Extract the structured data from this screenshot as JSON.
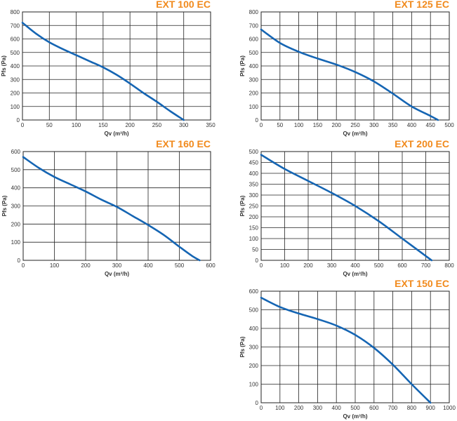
{
  "colors": {
    "title": "#f18a1c",
    "curve": "#1565b3",
    "grid": "#222222"
  },
  "chart_data": [
    {
      "type": "line",
      "title": "EXT 100 EC",
      "xlabel": "Qv (m³/h)",
      "ylabel": "Pfs (Pa)",
      "xlim": [
        0,
        350
      ],
      "ylim": [
        0,
        800
      ],
      "xticks": [
        "0",
        "50",
        "100",
        "150",
        "200",
        "250",
        "300",
        "350"
      ],
      "yticks": [
        "0",
        "100",
        "200",
        "300",
        "400",
        "500",
        "600",
        "700",
        "800"
      ],
      "grid": true,
      "series": [
        {
          "x": [
            0,
            25,
            50,
            75,
            100,
            125,
            150,
            175,
            200,
            225,
            250,
            275,
            300
          ],
          "y": [
            720,
            640,
            575,
            525,
            480,
            435,
            390,
            335,
            270,
            200,
            135,
            65,
            0
          ]
        }
      ]
    },
    {
      "type": "line",
      "title": "EXT 125 EC",
      "xlabel": "Qv (m³/h)",
      "ylabel": "Pfs (Pa)",
      "xlim": [
        0,
        500
      ],
      "ylim": [
        0,
        800
      ],
      "xticks": [
        "0",
        "50",
        "100",
        "150",
        "200",
        "250",
        "300",
        "350",
        "400",
        "450",
        "500"
      ],
      "yticks": [
        "0",
        "100",
        "200",
        "300",
        "400",
        "500",
        "600",
        "700",
        "800"
      ],
      "grid": true,
      "series": [
        {
          "x": [
            0,
            50,
            100,
            150,
            200,
            250,
            300,
            350,
            400,
            450,
            470
          ],
          "y": [
            670,
            570,
            505,
            455,
            410,
            355,
            285,
            195,
            100,
            30,
            0
          ]
        }
      ]
    },
    {
      "type": "line",
      "title": "EXT 160 EC",
      "xlabel": "Qv (m³/h)",
      "ylabel": "Pfs (Pa)",
      "xlim": [
        0,
        600
      ],
      "ylim": [
        0,
        600
      ],
      "xticks": [
        "0",
        "100",
        "200",
        "300",
        "400",
        "500",
        "600"
      ],
      "yticks": [
        "0",
        "100",
        "200",
        "300",
        "400",
        "500",
        "600"
      ],
      "grid": true,
      "series": [
        {
          "x": [
            0,
            50,
            100,
            150,
            200,
            250,
            300,
            350,
            400,
            450,
            500,
            540,
            565
          ],
          "y": [
            570,
            510,
            460,
            420,
            380,
            335,
            295,
            245,
            195,
            140,
            75,
            25,
            0
          ]
        }
      ]
    },
    {
      "type": "line",
      "title": "EXT 200 EC",
      "xlabel": "Qv (m³/h)",
      "ylabel": "Pfs (Pa)",
      "xlim": [
        0,
        800
      ],
      "ylim": [
        0,
        500
      ],
      "xticks": [
        "0",
        "100",
        "200",
        "300",
        "400",
        "500",
        "600",
        "700",
        "800"
      ],
      "yticks": [
        "0",
        "50",
        "100",
        "150",
        "200",
        "250",
        "300",
        "350",
        "400",
        "450",
        "500"
      ],
      "grid": true,
      "series": [
        {
          "x": [
            0,
            100,
            200,
            300,
            400,
            500,
            600,
            700,
            725
          ],
          "y": [
            485,
            420,
            365,
            310,
            250,
            180,
            100,
            20,
            0
          ]
        }
      ]
    },
    {
      "type": "line",
      "title": "EXT 150 EC",
      "xlabel": "Qv (m³/h)",
      "ylabel": "Pfs (Pa)",
      "xlim": [
        0,
        1000
      ],
      "ylim": [
        0,
        600
      ],
      "xticks": [
        "0",
        "100",
        "200",
        "300",
        "400",
        "500",
        "600",
        "700",
        "800",
        "900",
        "1000"
      ],
      "yticks": [
        "0",
        "100",
        "200",
        "300",
        "400",
        "500",
        "600"
      ],
      "grid": true,
      "series": [
        {
          "x": [
            0,
            100,
            200,
            300,
            400,
            500,
            600,
            700,
            800,
            900
          ],
          "y": [
            565,
            515,
            480,
            450,
            415,
            365,
            295,
            205,
            100,
            0
          ]
        }
      ]
    }
  ]
}
